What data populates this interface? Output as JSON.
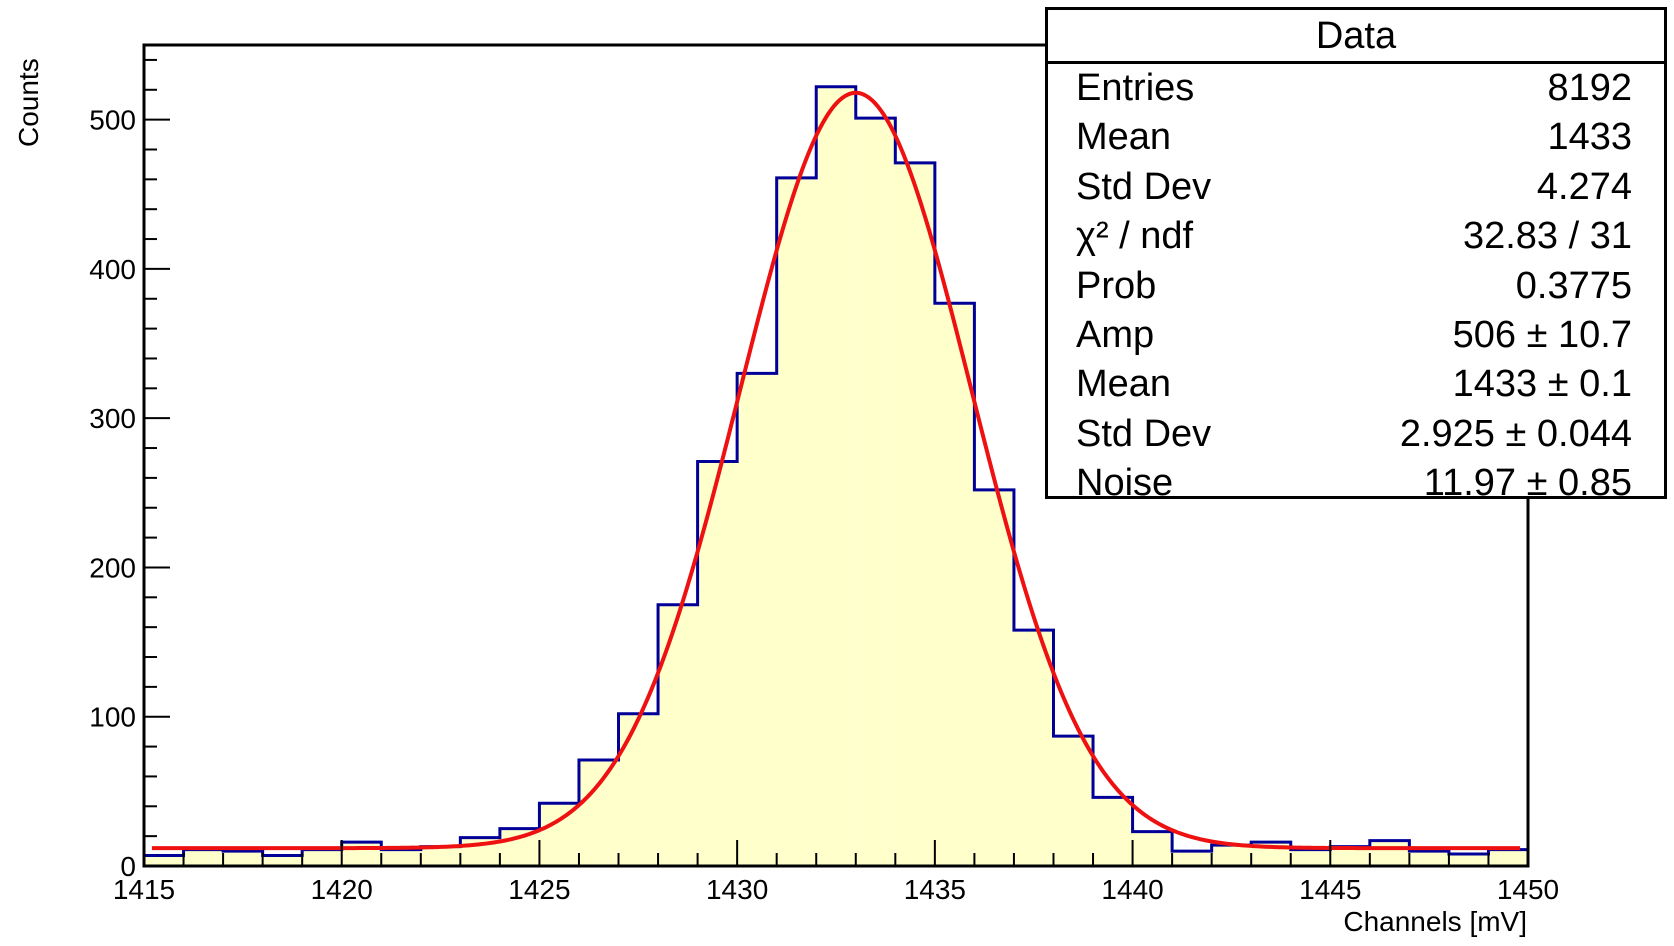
{
  "chart_data": {
    "type": "bar",
    "xlabel": "Channels [mV]",
    "ylabel": "Counts",
    "xlim": [
      1415,
      1450
    ],
    "ylim": [
      0,
      550
    ],
    "x_ticks": [
      "1415",
      "1420",
      "1425",
      "1430",
      "1435",
      "1440",
      "1445",
      "1450"
    ],
    "y_ticks": [
      "0",
      "100",
      "200",
      "300",
      "400",
      "500"
    ],
    "bin_width": 1,
    "bin_edges_start": [
      1415,
      1416,
      1417,
      1418,
      1419,
      1420,
      1421,
      1422,
      1423,
      1424,
      1425,
      1426,
      1427,
      1428,
      1429,
      1430,
      1431,
      1432,
      1433,
      1434,
      1435,
      1436,
      1437,
      1438,
      1439,
      1440,
      1441,
      1442,
      1443,
      1444,
      1445,
      1446,
      1447,
      1448,
      1449
    ],
    "values": [
      7,
      11,
      10,
      7,
      11,
      16,
      11,
      13,
      19,
      25,
      42,
      71,
      102,
      175,
      271,
      330,
      461,
      522,
      501,
      471,
      377,
      252,
      158,
      87,
      46,
      23,
      10,
      14,
      16,
      11,
      13,
      17,
      10,
      8,
      11
    ],
    "fit": {
      "amp": 506,
      "mean": 1433,
      "sigma": 2.925,
      "noise": 11.97
    },
    "colors": {
      "histogram_fill": "#ffffcc",
      "histogram_line": "#000099",
      "fit_line": "#ee1111"
    }
  },
  "stats": {
    "title": "Data",
    "rows": [
      {
        "label": "Entries",
        "value": "8192"
      },
      {
        "label": "Mean",
        "value": "1433"
      },
      {
        "label": "Std Dev",
        "value": "4.274"
      },
      {
        "label": "χ² / ndf",
        "value": "32.83 / 31"
      },
      {
        "label": "Prob",
        "value": "0.3775"
      },
      {
        "label": "Amp",
        "value": "506 ± 10.7"
      },
      {
        "label": "Mean",
        "value": "1433 ± 0.1"
      },
      {
        "label": "Std Dev",
        "value": "2.925 ± 0.044"
      },
      {
        "label": "Noise",
        "value": "11.97 ± 0.85"
      }
    ]
  }
}
